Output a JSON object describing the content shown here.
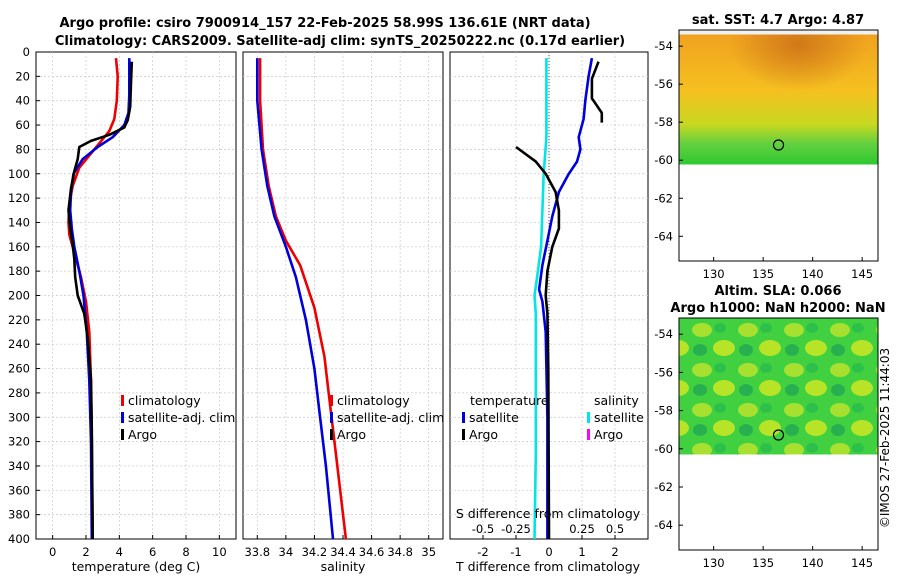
{
  "header": {
    "title_line1": "Argo profile: csiro 7900914_157 22-Feb-2025 58.99S 136.61E (NRT data)",
    "title_line2": "Climatology: CARS2009. Satellite-adj clim: synTS_20250222.nc (0.17d earlier)"
  },
  "side_label": "©IMOS 27-Feb-2025 11:44:03",
  "colors": {
    "climatology": "#ee0000",
    "satellite": "#0000dd",
    "argo": "#000000",
    "cyan": "#00e5e5",
    "magenta": "#ff00ff"
  },
  "chart_data": [
    {
      "type": "line",
      "id": "temperature",
      "xlabel": "temperature (deg C)",
      "xlim": [
        -1,
        11
      ],
      "ylim": [
        0,
        400
      ],
      "x_ticks": [
        "0",
        "2",
        "4",
        "6",
        "8",
        "10"
      ],
      "x_tick_values": [
        0,
        2,
        4,
        6,
        8,
        10
      ],
      "y_ticks": [
        "0",
        "20",
        "40",
        "60",
        "80",
        "100",
        "120",
        "140",
        "160",
        "180",
        "200",
        "220",
        "240",
        "260",
        "280",
        "300",
        "320",
        "340",
        "360",
        "380",
        "400"
      ],
      "legend": [
        "climatology",
        "satellite-adj. clim",
        "Argo"
      ],
      "series": [
        {
          "name": "climatology",
          "color": "#ee0000",
          "points": [
            [
              3.8,
              5
            ],
            [
              3.9,
              20
            ],
            [
              3.85,
              40
            ],
            [
              3.7,
              55
            ],
            [
              3.4,
              65
            ],
            [
              2.8,
              75
            ],
            [
              2.2,
              85
            ],
            [
              1.6,
              95
            ],
            [
              1.2,
              110
            ],
            [
              1.0,
              125
            ],
            [
              0.95,
              140
            ],
            [
              1.0,
              150
            ],
            [
              1.3,
              165
            ],
            [
              1.7,
              185
            ],
            [
              2.0,
              205
            ],
            [
              2.2,
              230
            ],
            [
              2.3,
              270
            ],
            [
              2.35,
              320
            ],
            [
              2.4,
              400
            ]
          ]
        },
        {
          "name": "satellite-adj. clim",
          "color": "#0000dd",
          "points": [
            [
              4.6,
              5
            ],
            [
              4.6,
              20
            ],
            [
              4.6,
              35
            ],
            [
              4.55,
              50
            ],
            [
              4.3,
              60
            ],
            [
              3.6,
              70
            ],
            [
              2.7,
              78
            ],
            [
              1.8,
              88
            ],
            [
              1.25,
              100
            ],
            [
              1.1,
              115
            ],
            [
              1.05,
              130
            ],
            [
              1.15,
              145
            ],
            [
              1.3,
              160
            ],
            [
              1.6,
              180
            ],
            [
              1.85,
              200
            ],
            [
              2.05,
              230
            ],
            [
              2.2,
              270
            ],
            [
              2.3,
              320
            ],
            [
              2.35,
              400
            ]
          ]
        },
        {
          "name": "Argo",
          "color": "#000000",
          "points": [
            [
              4.75,
              8
            ],
            [
              4.7,
              25
            ],
            [
              4.65,
              45
            ],
            [
              4.5,
              56
            ],
            [
              4.3,
              62
            ],
            [
              3.4,
              68
            ],
            [
              2.3,
              73
            ],
            [
              1.6,
              78
            ],
            [
              1.5,
              88
            ],
            [
              1.3,
              98
            ],
            [
              1.1,
              112
            ],
            [
              0.95,
              130
            ],
            [
              1.05,
              145
            ],
            [
              1.2,
              158
            ],
            [
              1.3,
              170
            ],
            [
              1.35,
              185
            ],
            [
              1.5,
              200
            ],
            [
              1.9,
              215
            ],
            [
              2.1,
              235
            ],
            [
              2.3,
              270
            ],
            [
              2.35,
              310
            ],
            [
              2.4,
              400
            ]
          ]
        }
      ]
    },
    {
      "type": "line",
      "id": "salinity",
      "xlabel": "salinity",
      "xlim": [
        33.7,
        35.1
      ],
      "ylim": [
        0,
        400
      ],
      "x_ticks": [
        "33.8",
        "34",
        "34.2",
        "34.4",
        "34.6",
        "34.8",
        "35"
      ],
      "x_tick_values": [
        33.8,
        34.0,
        34.2,
        34.4,
        34.6,
        34.8,
        35.0
      ],
      "legend": [
        "climatology",
        "satellite-adj. clim",
        "Argo"
      ],
      "series": [
        {
          "name": "climatology",
          "color": "#ee0000",
          "points": [
            [
              33.82,
              5
            ],
            [
              33.82,
              40
            ],
            [
              33.84,
              80
            ],
            [
              33.88,
              110
            ],
            [
              33.93,
              135
            ],
            [
              34.0,
              155
            ],
            [
              34.1,
              175
            ],
            [
              34.2,
              210
            ],
            [
              34.27,
              250
            ],
            [
              34.31,
              290
            ],
            [
              34.35,
              330
            ],
            [
              34.42,
              400
            ]
          ]
        },
        {
          "name": "satellite-adj. clim",
          "color": "#0000dd",
          "points": [
            [
              33.8,
              5
            ],
            [
              33.8,
              40
            ],
            [
              33.83,
              80
            ],
            [
              33.87,
              110
            ],
            [
              33.92,
              135
            ],
            [
              34.0,
              160
            ],
            [
              34.07,
              185
            ],
            [
              34.14,
              220
            ],
            [
              34.2,
              260
            ],
            [
              34.24,
              300
            ],
            [
              34.28,
              340
            ],
            [
              34.33,
              400
            ]
          ]
        },
        {
          "name": "Argo",
          "color": "#000000",
          "points": []
        }
      ]
    },
    {
      "type": "line",
      "id": "difference",
      "xlabel": "T difference from climatology",
      "x2label": "S difference from climatology",
      "xlim": [
        -3,
        3
      ],
      "ylim": [
        0,
        400
      ],
      "x_ticks": [
        "-2",
        "-1",
        "0",
        "1",
        "2"
      ],
      "x_tick_values": [
        -2,
        -1,
        0,
        1,
        2
      ],
      "x2_ticks": [
        "-0.5",
        "-0.25",
        "0.25",
        "0.5"
      ],
      "x2_tick_values": [
        -0.5,
        -0.25,
        0.25,
        0.5
      ],
      "x2lim": [
        -0.75,
        0.75
      ],
      "legend_temperature_title": "temperature",
      "legend_salinity_title": "salinity",
      "legend_temperature": [
        "satellite",
        "Argo"
      ],
      "legend_salinity": [
        "satellite",
        "Argo"
      ],
      "series": [
        {
          "name": "T satellite",
          "color": "#0000dd",
          "points": [
            [
              1.3,
              5
            ],
            [
              1.2,
              20
            ],
            [
              1.1,
              40
            ],
            [
              1.05,
              55
            ],
            [
              0.9,
              70
            ],
            [
              0.95,
              80
            ],
            [
              0.85,
              90
            ],
            [
              0.6,
              100
            ],
            [
              0.3,
              115
            ],
            [
              0.1,
              135
            ],
            [
              -0.05,
              155
            ],
            [
              -0.2,
              175
            ],
            [
              -0.3,
              195
            ],
            [
              -0.2,
              205
            ],
            [
              -0.1,
              230
            ],
            [
              -0.05,
              300
            ],
            [
              -0.05,
              400
            ]
          ]
        },
        {
          "name": "S satellite",
          "color": "#00e5e5",
          "points": [
            [
              -0.02,
              5
            ],
            [
              -0.02,
              40
            ],
            [
              -0.02,
              70
            ],
            [
              -0.04,
              100
            ],
            [
              -0.05,
              130
            ],
            [
              -0.06,
              160
            ],
            [
              -0.09,
              185
            ],
            [
              -0.11,
              200
            ],
            [
              -0.1,
              215
            ],
            [
              -0.1,
              260
            ],
            [
              -0.1,
              330
            ],
            [
              -0.11,
              400
            ]
          ]
        },
        {
          "name": "T Argo",
          "color": "#000000",
          "points": [
            [
              -1.0,
              78
            ],
            [
              -0.4,
              90
            ],
            [
              -0.1,
              100
            ],
            [
              0.2,
              115
            ],
            [
              0.3,
              130
            ],
            [
              0.3,
              145
            ],
            [
              0.1,
              160
            ],
            [
              -0.05,
              180
            ],
            [
              -0.1,
              200
            ],
            [
              -0.05,
              215
            ],
            [
              -0.02,
              260
            ],
            [
              0.0,
              400
            ]
          ]
        },
        {
          "name": "T Argo top",
          "color": "#000000",
          "points": [
            [
              1.5,
              8
            ],
            [
              1.3,
              22
            ],
            [
              1.3,
              38
            ],
            [
              1.6,
              50
            ],
            [
              1.6,
              58
            ]
          ]
        }
      ]
    }
  ],
  "maps": {
    "sst": {
      "title": "sat. SST: 4.7 Argo: 4.87",
      "lat_ticks": [
        "-54",
        "-56",
        "-58",
        "-60",
        "-62",
        "-64"
      ],
      "lon_ticks": [
        "130",
        "135",
        "140",
        "145"
      ],
      "marker": {
        "lon": 136.61,
        "lat": -58.99
      }
    },
    "sla": {
      "title_line1": "Altim. SLA: 0.066",
      "title_line2": "Argo h1000: NaN h2000: NaN",
      "lat_ticks": [
        "-54",
        "-56",
        "-58",
        "-60",
        "-62",
        "-64"
      ],
      "lon_ticks": [
        "130",
        "135",
        "140",
        "145"
      ],
      "marker": {
        "lon": 136.61,
        "lat": -58.99
      }
    }
  }
}
